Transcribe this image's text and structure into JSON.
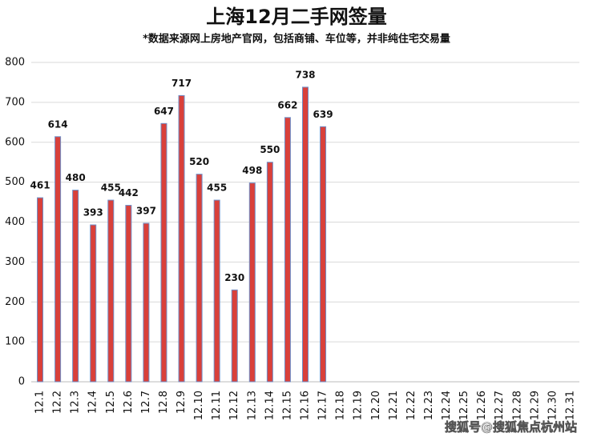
{
  "chart_data": {
    "type": "bar",
    "title": "上海12月二手网签量",
    "subtitle": "*数据来源网上房地产官网，包括商铺、车位等，并非纯住宅交易量",
    "watermark": "搜狐号@搜狐焦点杭州站",
    "categories": [
      "12.1",
      "12.2",
      "12.3",
      "12.4",
      "12.5",
      "12.6",
      "12.7",
      "12.8",
      "12.9",
      "12.10",
      "12.11",
      "12.12",
      "12.13",
      "12.14",
      "12.15",
      "12.16",
      "12.17",
      "12.18",
      "12.19",
      "12.20",
      "12.21",
      "12.22",
      "12.23",
      "12.24",
      "12.25",
      "12.26",
      "12.27",
      "12.28",
      "12.29",
      "12.30",
      "12.31"
    ],
    "values": [
      461,
      614,
      480,
      393,
      455,
      442,
      397,
      647,
      717,
      520,
      455,
      230,
      498,
      550,
      662,
      738,
      639,
      null,
      null,
      null,
      null,
      null,
      null,
      null,
      null,
      null,
      null,
      null,
      null,
      null,
      null
    ],
    "color": "#d9403a",
    "edge_color": "#6f8fc8",
    "ylim": [
      0,
      800
    ],
    "yticks": [
      0,
      100,
      200,
      300,
      400,
      500,
      600,
      700,
      800
    ],
    "grid": true
  }
}
